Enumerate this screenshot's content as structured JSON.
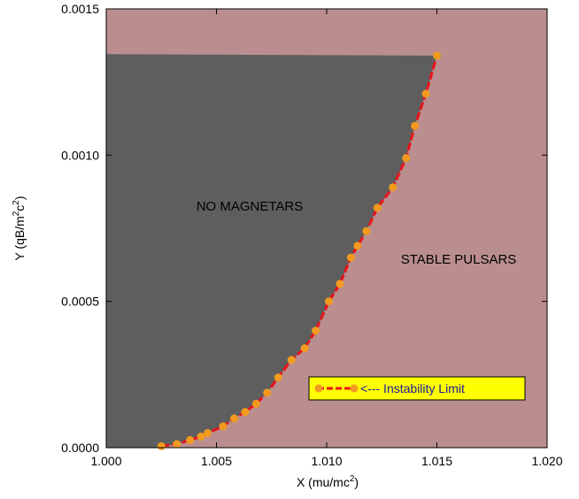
{
  "chart_data": {
    "type": "area",
    "xlim": [
      1.0,
      1.02
    ],
    "ylim": [
      0.0,
      0.0015
    ],
    "x_ticks": [
      "1.000",
      "1.005",
      "1.010",
      "1.015",
      "1.020"
    ],
    "y_ticks": [
      "0.0000",
      "0.0005",
      "0.0010",
      "0.0015"
    ],
    "x_tick_values": [
      1.0,
      1.005,
      1.01,
      1.015,
      1.02
    ],
    "y_tick_values": [
      0.0,
      0.0005,
      0.001,
      0.0015
    ],
    "xlabel": {
      "main": "X (mu/mc",
      "sup": "2",
      "close": ")"
    },
    "ylabel": {
      "main": "Y (qB/m",
      "sup1": "2",
      "mid": "c",
      "sup2": "2",
      "close": ")"
    },
    "regions": [
      {
        "name": "NO MAGNETARS",
        "color": "#5e5e5e",
        "top_y": 0.001345
      },
      {
        "name": "STABLE PULSARS",
        "color": "#ba8e8e"
      }
    ],
    "series": [
      {
        "name": "<--- Instability Limit",
        "line_color": "#e8141a",
        "marker_color": "#f29a1f",
        "x": [
          1.0025,
          1.0032,
          1.0038,
          1.0043,
          1.0046,
          1.0053,
          1.0058,
          1.0063,
          1.0068,
          1.0073,
          1.0078,
          1.0084,
          1.009,
          1.0095,
          1.0101,
          1.0106,
          1.0111,
          1.0114,
          1.0118,
          1.0123,
          1.013,
          1.0136,
          1.014,
          1.0145,
          1.015
        ],
        "y": [
          5e-06,
          1.2e-05,
          2.6e-05,
          3.8e-05,
          5e-05,
          7.3e-05,
          0.0001,
          0.000122,
          0.00015,
          0.000188,
          0.00024,
          0.0003,
          0.00034,
          0.0004,
          0.0005,
          0.00056,
          0.00065,
          0.00069,
          0.00074,
          0.00082,
          0.00089,
          0.00099,
          0.0011,
          0.00121,
          0.00134
        ]
      }
    ],
    "legend_position": "lower-right",
    "grid": false
  }
}
